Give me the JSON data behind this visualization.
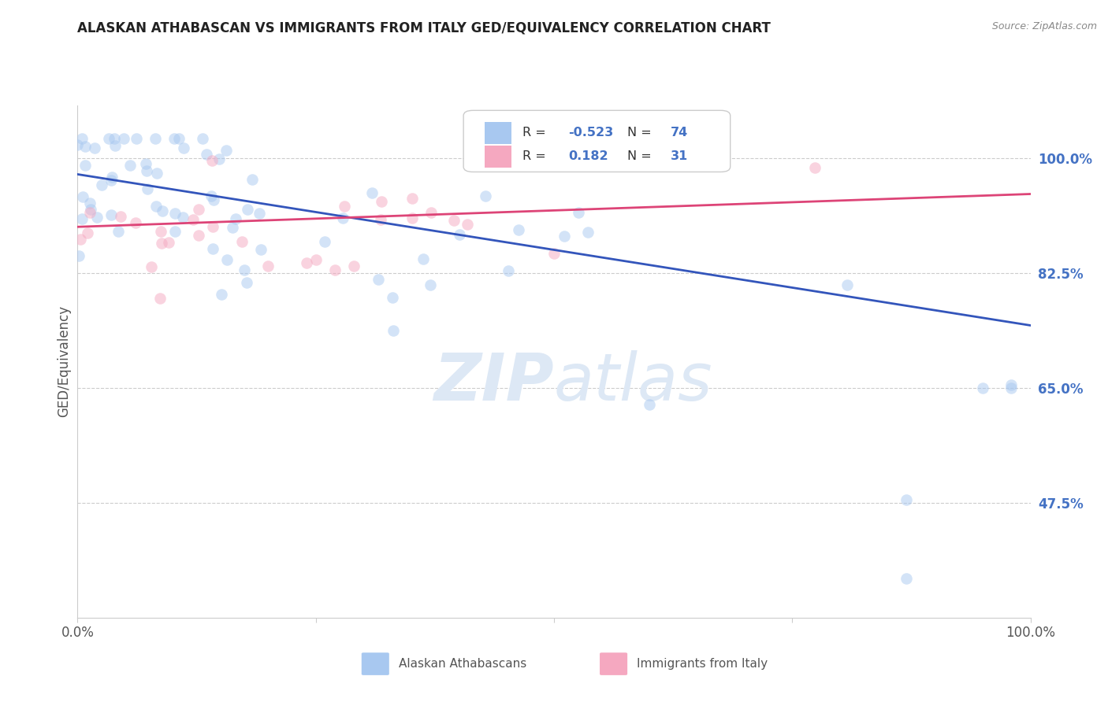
{
  "title": "ALASKAN ATHABASCAN VS IMMIGRANTS FROM ITALY GED/EQUIVALENCY CORRELATION CHART",
  "source": "Source: ZipAtlas.com",
  "ylabel": "GED/Equivalency",
  "xlim": [
    0.0,
    1.0
  ],
  "ylim": [
    0.3,
    1.08
  ],
  "yticks": [
    1.0,
    0.825,
    0.65,
    0.475
  ],
  "ytick_labels_str": [
    "100.0%",
    "82.5%",
    "65.0%",
    "47.5%"
  ],
  "blue_line_x0": 0.0,
  "blue_line_y0": 0.975,
  "blue_line_x1": 1.0,
  "blue_line_y1": 0.745,
  "pink_line_x0": 0.0,
  "pink_line_y0": 0.895,
  "pink_line_x1": 1.0,
  "pink_line_y1": 0.945,
  "scatter_size": 110,
  "scatter_alpha": 0.5,
  "blue_scatter_color": "#a8c8f0",
  "pink_scatter_color": "#f5a8c0",
  "blue_line_color": "#3355bb",
  "pink_line_color": "#dd4477",
  "watermark_color": "#dde8f5",
  "watermark_fontsize": 60,
  "legend_box_color": "#ffffff",
  "legend_border_color": "#cccccc",
  "R_N_color": "#4472c4",
  "label_color": "#555555",
  "grid_color": "#cccccc",
  "background_color": "#ffffff",
  "title_color": "#222222",
  "source_color": "#888888",
  "ytick_color": "#4472c4"
}
